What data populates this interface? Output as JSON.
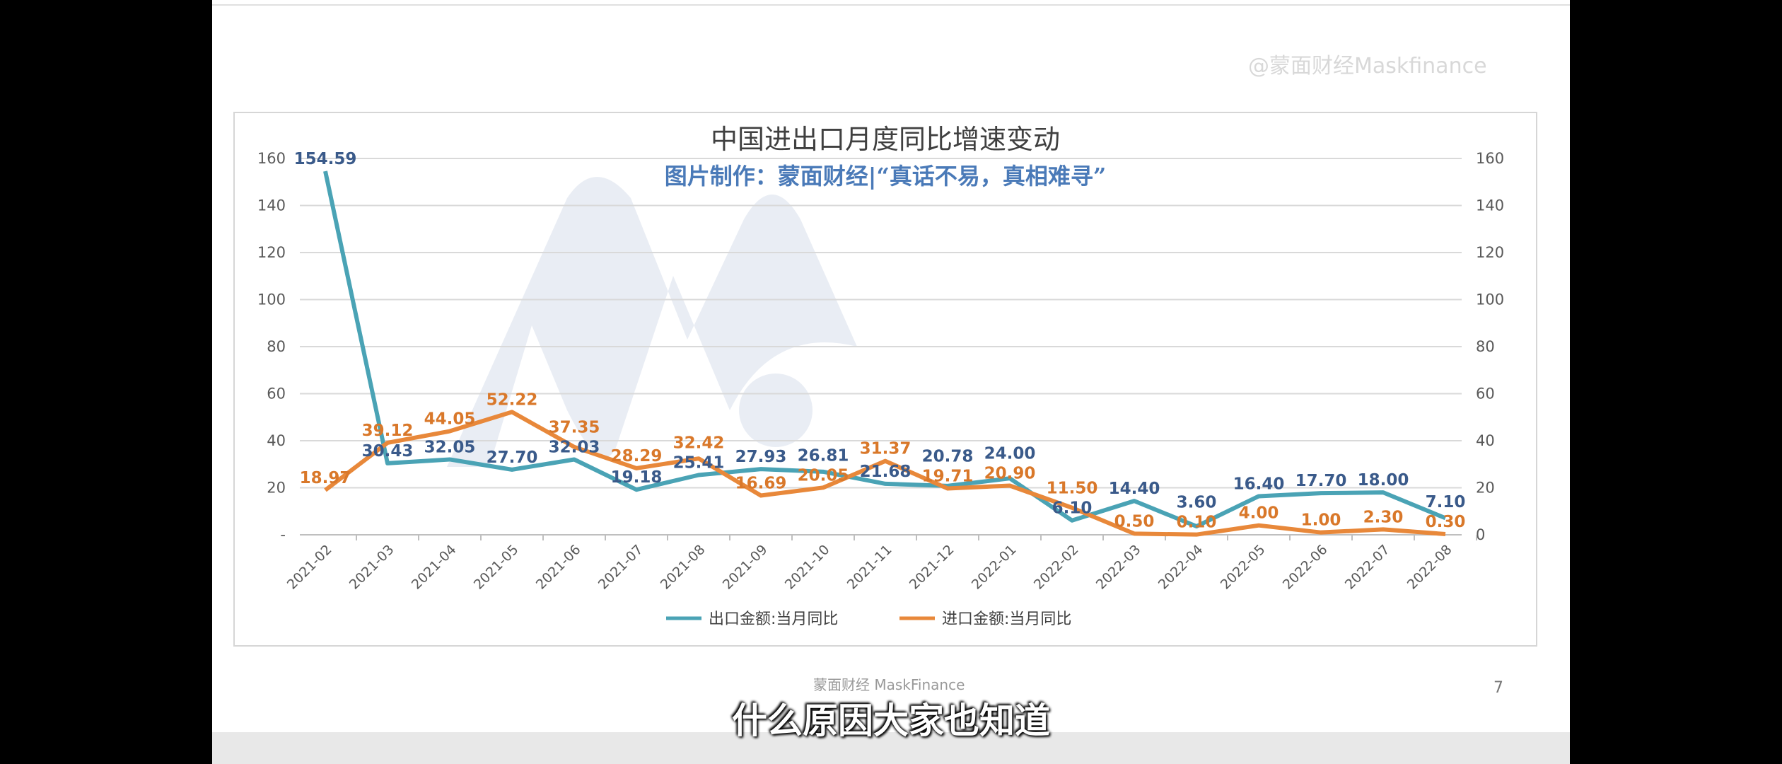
{
  "watermark": "@蒙面财经Maskfinance",
  "footer": "蒙面财经 MaskFinance",
  "page_number": "7",
  "caption": "什么原因大家也知道",
  "colors": {
    "export": "#4aa3b5",
    "import": "#e8883a",
    "export_label": "#3a5a8a",
    "import_label": "#d9782a"
  },
  "chart_data": {
    "type": "line",
    "title": "中国进出口月度同比增速变动",
    "subtitle": "图片制作：蒙面财经|“真话不易，真相难寻”",
    "categories": [
      "2021-02",
      "2021-03",
      "2021-04",
      "2021-05",
      "2021-06",
      "2021-07",
      "2021-08",
      "2021-09",
      "2021-10",
      "2021-11",
      "2021-12",
      "2022-01",
      "2022-02",
      "2022-03",
      "2022-04",
      "2022-05",
      "2022-06",
      "2022-07",
      "2022-08"
    ],
    "series": [
      {
        "name": "出口金额:当月同比",
        "values": [
          154.59,
          30.43,
          32.05,
          27.7,
          32.03,
          19.18,
          25.41,
          27.93,
          26.81,
          21.68,
          20.78,
          24.0,
          6.1,
          14.4,
          3.6,
          16.4,
          17.7,
          18.0,
          7.1
        ]
      },
      {
        "name": "进口金额:当月同比",
        "values": [
          18.97,
          39.12,
          44.05,
          52.22,
          37.35,
          28.29,
          32.42,
          16.69,
          20.05,
          31.37,
          19.71,
          20.9,
          11.5,
          0.5,
          0.1,
          4.0,
          1.0,
          2.3,
          0.3
        ]
      }
    ],
    "ylim": [
      0,
      160
    ],
    "left_ticks": [
      "-",
      "20",
      "40",
      "60",
      "80",
      "100",
      "120",
      "140",
      "160"
    ],
    "right_ticks": [
      "0",
      "20",
      "40",
      "60",
      "80",
      "100",
      "120",
      "140",
      "160"
    ],
    "grid": true,
    "legend": "bottom"
  }
}
